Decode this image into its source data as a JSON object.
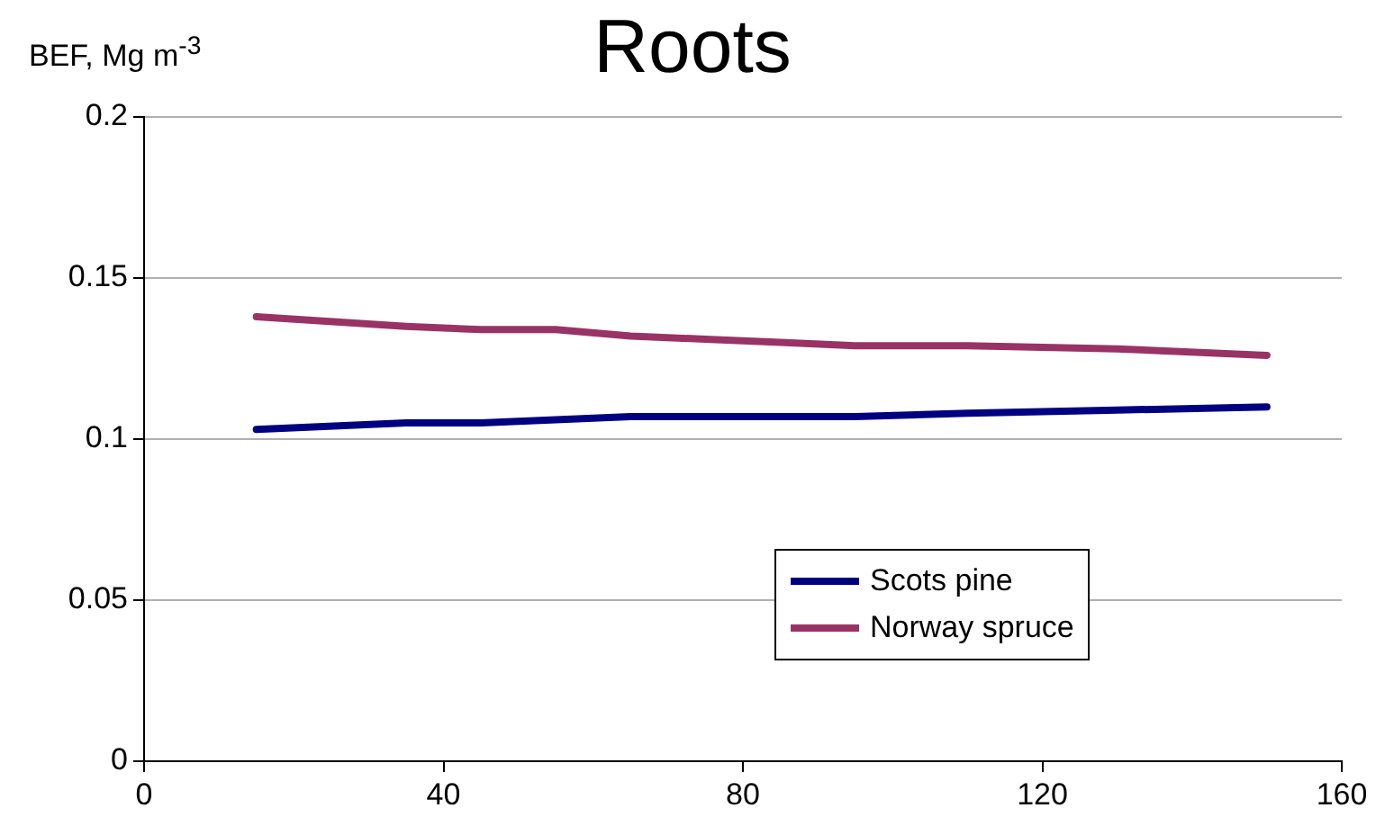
{
  "chart_data": {
    "type": "line",
    "title": "Roots",
    "ylabel": "BEF, Mg m$^{-3}$",
    "x": [
      15,
      35,
      45,
      55,
      65,
      75,
      85,
      95,
      110,
      130,
      150
    ],
    "series": [
      {
        "name": "Scots pine",
        "color": "#000080",
        "values": [
          0.103,
          0.105,
          0.105,
          0.106,
          0.107,
          0.107,
          0.107,
          0.107,
          0.108,
          0.109,
          0.11
        ]
      },
      {
        "name": "Norway spruce",
        "color": "#993366",
        "values": [
          0.138,
          0.135,
          0.134,
          0.134,
          0.132,
          0.131,
          0.13,
          0.129,
          0.129,
          0.128,
          0.126
        ]
      }
    ],
    "xlim": [
      0,
      160
    ],
    "xticks": [
      0,
      40,
      80,
      120,
      160
    ],
    "ylim": [
      0,
      0.2
    ],
    "yticks": [
      0,
      0.05,
      0.1,
      0.15,
      0.2
    ],
    "grid": "y",
    "legend": "bottom right",
    "marker": "none",
    "line_style": "solid"
  }
}
